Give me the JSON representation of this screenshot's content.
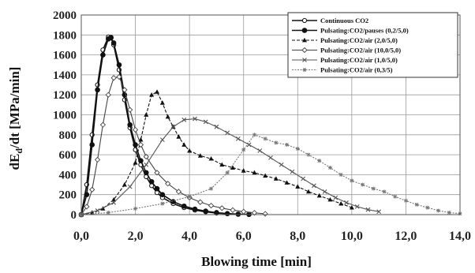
{
  "chart_data": {
    "type": "line",
    "title": "",
    "xlabel": "Blowing time  [min]",
    "ylabel_main": "dE",
    "ylabel_sub": "d",
    "ylabel_rest": "/dt   [MPa/min]",
    "xlim": [
      0,
      14
    ],
    "ylim": [
      0,
      2000
    ],
    "x_ticks": [
      "0,0",
      "2,0",
      "4,0",
      "6,0",
      "8,0",
      "10,0",
      "12,0",
      "14,0"
    ],
    "y_ticks": [
      "0",
      "200",
      "400",
      "600",
      "800",
      "1000",
      "1200",
      "1400",
      "1600",
      "1800",
      "2000"
    ],
    "grid": true,
    "legend_position": "top-right",
    "series": [
      {
        "name": "Continuous CO2",
        "color": "#111111",
        "marker": "circle-open",
        "x": [
          0.0,
          0.2,
          0.4,
          0.6,
          0.8,
          1.0,
          1.1,
          1.2,
          1.4,
          1.6,
          1.8,
          2.0,
          2.2,
          2.4,
          2.6,
          2.8,
          3.0,
          3.4,
          3.8,
          4.2,
          4.6,
          5.0,
          5.4,
          5.8
        ],
        "y": [
          0,
          300,
          800,
          1300,
          1650,
          1780,
          1770,
          1700,
          1450,
          1150,
          870,
          650,
          500,
          380,
          290,
          220,
          170,
          110,
          70,
          45,
          28,
          15,
          8,
          3
        ]
      },
      {
        "name": "Pulsating:CO2/pauses (0,2/5,0)",
        "color": "#111111",
        "marker": "circle-filled",
        "x": [
          0.0,
          0.2,
          0.4,
          0.6,
          0.8,
          1.0,
          1.1,
          1.2,
          1.4,
          1.6,
          1.8,
          2.0,
          2.2,
          2.4,
          2.6,
          2.8,
          3.0,
          3.4,
          3.8,
          4.2,
          4.6,
          5.0,
          5.4,
          5.8,
          6.2
        ],
        "y": [
          0,
          200,
          700,
          1250,
          1600,
          1760,
          1775,
          1720,
          1500,
          1200,
          900,
          700,
          540,
          420,
          330,
          260,
          200,
          130,
          85,
          55,
          35,
          20,
          10,
          5,
          2
        ]
      },
      {
        "name": "Pulsating:CO2/air (2,0/5,0)",
        "color": "#111111",
        "marker": "triangle",
        "x": [
          0.0,
          0.4,
          0.8,
          1.2,
          1.6,
          2.0,
          2.2,
          2.4,
          2.6,
          2.8,
          3.0,
          3.2,
          3.4,
          3.6,
          3.8,
          4.0,
          4.4,
          4.8,
          5.2,
          5.6,
          6.0,
          6.4,
          6.8,
          7.2,
          7.6,
          8.0,
          8.4,
          8.8,
          9.2,
          9.6,
          10.0
        ],
        "y": [
          0,
          20,
          60,
          150,
          300,
          520,
          750,
          1000,
          1200,
          1230,
          1120,
          980,
          880,
          780,
          700,
          640,
          590,
          560,
          500,
          470,
          440,
          420,
          390,
          360,
          320,
          280,
          230,
          190,
          150,
          110,
          70
        ]
      },
      {
        "name": "Pulsating:CO2/air (10,0/5,0)",
        "color": "#444444",
        "marker": "diamond",
        "x": [
          0.0,
          0.2,
          0.4,
          0.6,
          0.8,
          1.0,
          1.2,
          1.4,
          1.6,
          1.8,
          2.0,
          2.2,
          2.4,
          2.8,
          3.2,
          3.6,
          4.0,
          4.4,
          4.8,
          5.2,
          5.6,
          6.0,
          6.4,
          6.8
        ],
        "y": [
          0,
          80,
          250,
          550,
          900,
          1200,
          1370,
          1380,
          1250,
          1050,
          850,
          700,
          580,
          420,
          310,
          230,
          170,
          125,
          90,
          65,
          45,
          30,
          18,
          8
        ]
      },
      {
        "name": "Pulsating:CO2/air (1,0/5,0)",
        "color": "#555555",
        "marker": "x",
        "x": [
          0.0,
          0.6,
          1.2,
          1.8,
          2.4,
          3.0,
          3.4,
          3.8,
          4.2,
          4.6,
          5.0,
          5.4,
          5.8,
          6.2,
          6.6,
          7.0,
          7.4,
          7.8,
          8.2,
          8.6,
          9.0,
          9.4,
          9.8,
          10.2,
          10.6,
          11.0
        ],
        "y": [
          0,
          40,
          120,
          280,
          500,
          750,
          880,
          950,
          960,
          930,
          880,
          820,
          760,
          700,
          640,
          570,
          500,
          430,
          360,
          290,
          230,
          170,
          120,
          80,
          50,
          30
        ]
      },
      {
        "name": "Pulsating:CO2/air (0,3/5)",
        "color": "#777777",
        "marker": "asterisk",
        "x": [
          0.0,
          1.0,
          2.0,
          3.0,
          4.0,
          4.8,
          5.4,
          6.0,
          6.4,
          6.8,
          7.2,
          7.6,
          8.0,
          8.4,
          8.8,
          9.2,
          9.6,
          10.0,
          10.4,
          10.8,
          11.2,
          11.6,
          12.0,
          12.4,
          12.8,
          13.2,
          13.6,
          14.0
        ],
        "y": [
          0,
          20,
          60,
          110,
          180,
          260,
          420,
          650,
          800,
          760,
          720,
          700,
          660,
          600,
          540,
          470,
          400,
          340,
          300,
          260,
          230,
          180,
          140,
          100,
          70,
          40,
          20,
          10
        ]
      }
    ]
  }
}
